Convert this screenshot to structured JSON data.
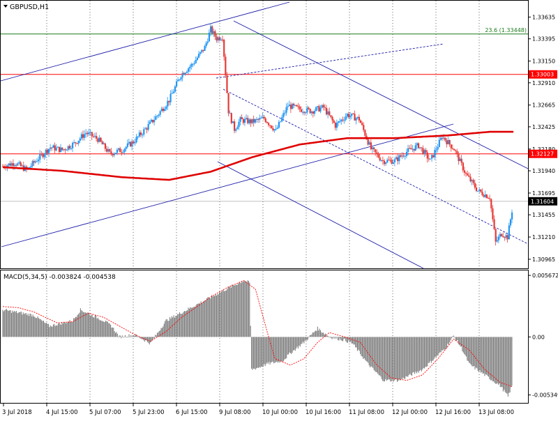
{
  "window": {
    "symbol_title": "GBPUSD,H1",
    "dropdown_icon": "triangle-down-icon"
  },
  "indicator": {
    "label": "MACD(5,34,5) -0.003824 -0.004538"
  },
  "colors": {
    "background": "#ffffff",
    "up_candle": "#2196f3",
    "down_candle": "#e53935",
    "moving_average": "#e00000",
    "horizontal_level": "#ff0000",
    "fibo_level": "#1a7a1a",
    "trend_channel": "#1a1aa8",
    "macd_histogram": "#808080",
    "macd_signal": "#ff0000",
    "grid": "#000000"
  },
  "chart_data": [
    {
      "type": "candlestick",
      "symbol": "GBPUSD",
      "timeframe": "H1",
      "price_axis_ticks": [
        1.33635,
        1.33395,
        1.3315,
        1.3291,
        1.32665,
        1.32425,
        1.3218,
        1.3194,
        1.31695,
        1.31455,
        1.3121,
        1.30965
      ],
      "price_axis_tick_labels": [
        "1.33635",
        "1.33395",
        "1.33150",
        "1.32910",
        "1.32665",
        "1.32425",
        "1.32180",
        "1.31940",
        "1.31695",
        "1.31455",
        "1.31210",
        "1.30965"
      ],
      "ylim": [
        1.3088,
        1.338
      ],
      "x_tick_labels": [
        "3 Jul 2018",
        "4 Jul 15:00",
        "5 Jul 07:00",
        "5 Jul 23:00",
        "6 Jul 15:00",
        "9 Jul 08:00",
        "10 Jul 00:00",
        "10 Jul 16:00",
        "11 Jul 08:00",
        "12 Jul 00:00",
        "12 Jul 16:00",
        "13 Jul 08:00"
      ],
      "grid": "vertical-dotted",
      "price_path": [
        [
          0,
          1.3199
        ],
        [
          8,
          1.3203
        ],
        [
          16,
          1.3195
        ],
        [
          24,
          1.3208
        ],
        [
          32,
          1.322
        ],
        [
          40,
          1.3217
        ],
        [
          48,
          1.3224
        ],
        [
          56,
          1.3236
        ],
        [
          64,
          1.3229
        ],
        [
          72,
          1.3213
        ],
        [
          80,
          1.3217
        ],
        [
          88,
          1.3226
        ],
        [
          96,
          1.324
        ],
        [
          104,
          1.3255
        ],
        [
          112,
          1.3272
        ],
        [
          120,
          1.33
        ],
        [
          128,
          1.3312
        ],
        [
          136,
          1.333
        ],
        [
          140,
          1.335
        ],
        [
          144,
          1.334
        ],
        [
          148,
          1.3342
        ],
        [
          152,
          1.326
        ],
        [
          156,
          1.324
        ],
        [
          160,
          1.325
        ],
        [
          168,
          1.3248
        ],
        [
          176,
          1.3252
        ],
        [
          184,
          1.3238
        ],
        [
          192,
          1.3266
        ],
        [
          200,
          1.3262
        ],
        [
          208,
          1.326
        ],
        [
          216,
          1.3264
        ],
        [
          224,
          1.3244
        ],
        [
          232,
          1.3256
        ],
        [
          240,
          1.3251
        ],
        [
          248,
          1.3218
        ],
        [
          256,
          1.3205
        ],
        [
          264,
          1.3205
        ],
        [
          272,
          1.3215
        ],
        [
          280,
          1.3222
        ],
        [
          288,
          1.3205
        ],
        [
          296,
          1.3232
        ],
        [
          304,
          1.3218
        ],
        [
          312,
          1.319
        ],
        [
          320,
          1.3172
        ],
        [
          328,
          1.3165
        ],
        [
          332,
          1.3115
        ],
        [
          336,
          1.3125
        ],
        [
          340,
          1.3121
        ],
        [
          344,
          1.316
        ]
      ],
      "bar_count": 344,
      "overlays": {
        "moving_average_path": [
          [
            0,
            1.3198
          ],
          [
            40,
            1.3194
          ],
          [
            80,
            1.3187
          ],
          [
            112,
            1.3184
          ],
          [
            140,
            1.3193
          ],
          [
            168,
            1.3209
          ],
          [
            200,
            1.3223
          ],
          [
            232,
            1.323
          ],
          [
            264,
            1.323
          ],
          [
            300,
            1.3233
          ],
          [
            328,
            1.3237
          ],
          [
            345,
            1.3237
          ]
        ],
        "horizontal_levels": [
          {
            "price": 1.33003,
            "label": "1.33003"
          },
          {
            "price": 1.32127,
            "label": "1.32127"
          }
        ],
        "fibo_level": {
          "price": 1.33448,
          "label": "23.6 (1.33448)"
        },
        "current_price": {
          "price": 1.31604,
          "label": "1.31604"
        }
      }
    },
    {
      "type": "histogram",
      "title": "MACD(5,34,5)",
      "values_label": "-0.003824 -0.004538",
      "ylim": [
        -0.00595,
        0.006
      ],
      "axis_ticks": [
        0.005672,
        0.0,
        -0.005349
      ],
      "axis_tick_labels": [
        "0.005672",
        "0.00",
        "-0.005349"
      ],
      "histogram_path": [
        [
          0,
          0.0025
        ],
        [
          32,
          0.002
        ],
        [
          48,
          0.001
        ],
        [
          72,
          0.0015
        ],
        [
          80,
          0.0025
        ],
        [
          104,
          0.0015
        ],
        [
          112,
          0.001
        ],
        [
          120,
          0.0
        ],
        [
          136,
          0.0002
        ],
        [
          152,
          -0.0006
        ],
        [
          168,
          0.0015
        ],
        [
          200,
          0.003
        ],
        [
          232,
          0.0045
        ],
        [
          248,
          0.0052
        ],
        [
          254,
          0.005
        ],
        [
          256,
          -0.003
        ],
        [
          264,
          -0.0028
        ],
        [
          272,
          -0.0025
        ],
        [
          288,
          -0.0022
        ],
        [
          296,
          -0.0015
        ],
        [
          310,
          -0.0005
        ],
        [
          324,
          0.0008
        ],
        [
          336,
          0.0
        ],
        [
          352,
          -0.0003
        ],
        [
          360,
          -0.0006
        ],
        [
          376,
          -0.0025
        ],
        [
          392,
          -0.004
        ],
        [
          408,
          -0.004
        ],
        [
          432,
          -0.003
        ],
        [
          456,
          -0.001
        ],
        [
          464,
          0.0001
        ],
        [
          472,
          -0.001
        ],
        [
          480,
          -0.0025
        ],
        [
          496,
          -0.0035
        ],
        [
          512,
          -0.0045
        ],
        [
          520,
          -0.0055
        ],
        [
          524,
          -0.0045
        ]
      ],
      "histogram_bar_count": 525,
      "signal_path": [
        [
          0,
          0.0028
        ],
        [
          16,
          0.0027
        ],
        [
          32,
          0.0023
        ],
        [
          56,
          0.0013
        ],
        [
          72,
          0.0014
        ],
        [
          88,
          0.0022
        ],
        [
          104,
          0.0018
        ],
        [
          120,
          0.001
        ],
        [
          136,
          0.0002
        ],
        [
          152,
          -0.0004
        ],
        [
          168,
          0.0005
        ],
        [
          184,
          0.0018
        ],
        [
          200,
          0.0028
        ],
        [
          216,
          0.0038
        ],
        [
          232,
          0.0046
        ],
        [
          248,
          0.0052
        ],
        [
          260,
          0.0044
        ],
        [
          272,
          0.0005
        ],
        [
          280,
          -0.002
        ],
        [
          296,
          -0.0026
        ],
        [
          310,
          -0.002
        ],
        [
          324,
          -0.0005
        ],
        [
          336,
          0.0004
        ],
        [
          352,
          0.0
        ],
        [
          368,
          -0.0005
        ],
        [
          384,
          -0.0025
        ],
        [
          400,
          -0.0038
        ],
        [
          416,
          -0.004
        ],
        [
          432,
          -0.0035
        ],
        [
          448,
          -0.002
        ],
        [
          464,
          -0.0002
        ],
        [
          480,
          -0.0012
        ],
        [
          496,
          -0.003
        ],
        [
          512,
          -0.0042
        ],
        [
          525,
          -0.0046
        ]
      ]
    }
  ]
}
